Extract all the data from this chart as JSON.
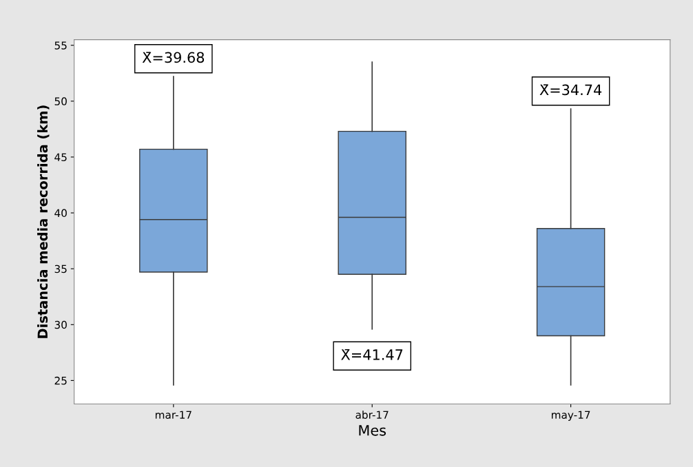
{
  "chart_data": {
    "type": "box",
    "xlabel": "Mes",
    "ylabel": "Distancia media recorrida (km)",
    "categories": [
      "mar-17",
      "abr-17",
      "may-17"
    ],
    "boxes": [
      {
        "low": 24.6,
        "q1": 34.7,
        "median": 39.4,
        "q3": 45.7,
        "high": 52.2
      },
      {
        "low": 29.6,
        "q1": 34.5,
        "median": 39.6,
        "q3": 47.3,
        "high": 53.5
      },
      {
        "low": 24.6,
        "q1": 29.0,
        "median": 33.4,
        "q3": 38.6,
        "high": 49.3
      }
    ],
    "color": "#7ba7d9",
    "ylim": [
      22.9,
      55.5
    ],
    "yticks": [
      25,
      30,
      35,
      40,
      45,
      50,
      55
    ],
    "grid": false,
    "legend": false,
    "annotations": [
      "X̄=39.68",
      "X̄=41.47",
      "X̄=34.74"
    ]
  }
}
